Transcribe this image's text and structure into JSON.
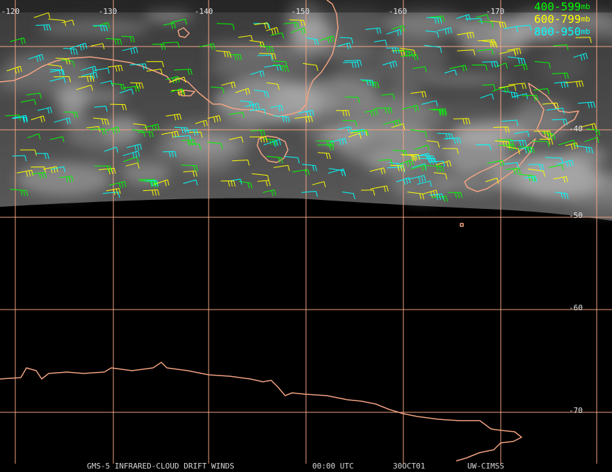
{
  "longitude_labels": [
    -120,
    -130,
    -140,
    -150,
    -160,
    -170
  ],
  "latitude_labels": [
    -40,
    -50,
    -60,
    -70
  ],
  "legend": [
    {
      "label": "400-599",
      "unit": "mb",
      "color": "#00ff00"
    },
    {
      "label": "600-799",
      "unit": "mb",
      "color": "#ffff00"
    },
    {
      "label": "800-950",
      "unit": "mb",
      "color": "#00ffff"
    }
  ],
  "footer": {
    "product": "GMS-5 INFRARED-CLOUD DRIFT WINDS",
    "time": "00:00 UTC",
    "date": "30OCT01",
    "source": "UW-CIMSS"
  }
}
